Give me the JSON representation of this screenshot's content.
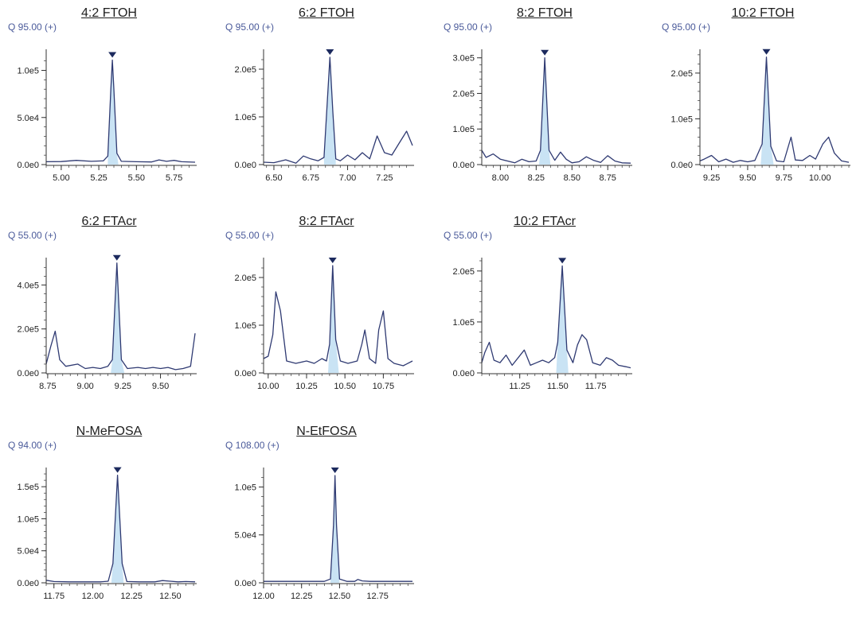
{
  "colors": {
    "trace": "#2f3a72",
    "fill": "#c9e3f4",
    "marker": "#1c2a5e",
    "axis": "#333333"
  },
  "chart_data": [
    {
      "type": "line",
      "title": "4:2 FTOH",
      "annotation": "Q 95.00 (+)",
      "xlim": [
        4.9,
        5.89
      ],
      "ylim": [
        0,
        119000
      ],
      "xticks": [
        "5.00",
        "5.25",
        "5.50",
        "5.75"
      ],
      "xtick_values": [
        5.0,
        5.25,
        5.5,
        5.75
      ],
      "yticks": [
        "0.0e0",
        "5.0e4",
        "1.0e5"
      ],
      "ytick_values": [
        0,
        50000,
        100000
      ],
      "peak": {
        "x": 5.34,
        "y": 111000,
        "x_start": 5.31,
        "x_end": 5.38
      },
      "series": [
        {
          "x": [
            4.9,
            5.0,
            5.1,
            5.2,
            5.28,
            5.31,
            5.33,
            5.34,
            5.35,
            5.37,
            5.4,
            5.5,
            5.6,
            5.65,
            5.7,
            5.75,
            5.8,
            5.89
          ],
          "y": [
            3000,
            3200,
            4500,
            3500,
            4000,
            9000,
            80000,
            111000,
            80000,
            12000,
            3500,
            3000,
            2800,
            5000,
            3500,
            4500,
            3000,
            2500
          ]
        }
      ]
    },
    {
      "type": "line",
      "title": "6:2 FTOH",
      "annotation": "Q 95.00 (+)",
      "xlim": [
        6.43,
        7.44
      ],
      "ylim": [
        0,
        235000
      ],
      "xticks": [
        "6.50",
        "6.75",
        "7.00",
        "7.25"
      ],
      "xtick_values": [
        6.5,
        6.75,
        7.0,
        7.25
      ],
      "yticks": [
        "0.0e0",
        "1.0e5",
        "2.0e5"
      ],
      "ytick_values": [
        0,
        100000,
        200000
      ],
      "peak": {
        "x": 6.88,
        "y": 225000,
        "x_start": 6.84,
        "x_end": 6.92
      },
      "series": [
        {
          "x": [
            6.43,
            6.5,
            6.58,
            6.65,
            6.7,
            6.75,
            6.8,
            6.84,
            6.86,
            6.88,
            6.9,
            6.92,
            6.95,
            7.0,
            7.05,
            7.1,
            7.15,
            7.2,
            7.25,
            7.3,
            7.35,
            7.4,
            7.44
          ],
          "y": [
            5000,
            4000,
            10000,
            3000,
            18000,
            12000,
            8000,
            15000,
            120000,
            225000,
            110000,
            12000,
            8000,
            20000,
            10000,
            25000,
            12000,
            60000,
            25000,
            20000,
            45000,
            70000,
            40000
          ]
        }
      ]
    },
    {
      "type": "line",
      "title": "8:2 FTOH",
      "annotation": "Q 95.00 (+)",
      "xlim": [
        7.87,
        8.91
      ],
      "ylim": [
        0,
        315000
      ],
      "xticks": [
        "8.00",
        "8.25",
        "8.50",
        "8.75"
      ],
      "xtick_values": [
        8.0,
        8.25,
        8.5,
        8.75
      ],
      "yticks": [
        "0.0e0",
        "1.0e5",
        "2.0e5",
        "3.0e5"
      ],
      "ytick_values": [
        0,
        100000,
        200000,
        300000
      ],
      "peak": {
        "x": 8.31,
        "y": 300000,
        "x_start": 8.27,
        "x_end": 8.35
      },
      "series": [
        {
          "x": [
            7.87,
            7.9,
            7.95,
            8.0,
            8.05,
            8.1,
            8.15,
            8.2,
            8.25,
            8.28,
            8.31,
            8.34,
            8.38,
            8.42,
            8.46,
            8.5,
            8.55,
            8.6,
            8.65,
            8.7,
            8.75,
            8.8,
            8.85,
            8.91
          ],
          "y": [
            40000,
            20000,
            30000,
            15000,
            10000,
            5000,
            15000,
            8000,
            10000,
            40000,
            300000,
            40000,
            12000,
            35000,
            15000,
            5000,
            8000,
            22000,
            12000,
            6000,
            25000,
            10000,
            5000,
            4000
          ]
        }
      ]
    },
    {
      "type": "line",
      "title": "10:2 FTOH",
      "annotation": "Q 95.00 (+)",
      "xlim": [
        9.17,
        10.2
      ],
      "ylim": [
        0,
        245000
      ],
      "xticks": [
        "9.25",
        "9.50",
        "9.75",
        "10.00"
      ],
      "xtick_values": [
        9.25,
        9.5,
        9.75,
        10.0
      ],
      "yticks": [
        "0.0e0",
        "1.0e5",
        "2.0e5"
      ],
      "ytick_values": [
        0,
        100000,
        200000
      ],
      "peak": {
        "x": 9.63,
        "y": 235000,
        "x_start": 9.59,
        "x_end": 9.68
      },
      "series": [
        {
          "x": [
            9.17,
            9.2,
            9.25,
            9.3,
            9.35,
            9.4,
            9.45,
            9.5,
            9.55,
            9.6,
            9.63,
            9.66,
            9.7,
            9.75,
            9.8,
            9.83,
            9.88,
            9.93,
            9.97,
            10.02,
            10.06,
            10.1,
            10.15,
            10.2
          ],
          "y": [
            8000,
            12000,
            20000,
            6000,
            12000,
            5000,
            9000,
            6000,
            9000,
            45000,
            235000,
            40000,
            8000,
            6000,
            60000,
            10000,
            9000,
            20000,
            12000,
            45000,
            60000,
            25000,
            8000,
            5000
          ]
        }
      ]
    },
    {
      "type": "line",
      "title": "6:2 FTAcr",
      "annotation": "Q 55.00 (+)",
      "xlim": [
        8.74,
        9.73
      ],
      "ylim": [
        0,
        510000
      ],
      "xticks": [
        "8.75",
        "9.00",
        "9.25",
        "9.50"
      ],
      "xtick_values": [
        8.75,
        9.0,
        9.25,
        9.5
      ],
      "yticks": [
        "0.0e0",
        "2.0e5",
        "4.0e5"
      ],
      "ytick_values": [
        0,
        200000,
        400000
      ],
      "peak": {
        "x": 9.21,
        "y": 500000,
        "x_start": 9.17,
        "x_end": 9.26
      },
      "series": [
        {
          "x": [
            8.74,
            8.77,
            8.8,
            8.83,
            8.87,
            8.95,
            9.0,
            9.05,
            9.1,
            9.15,
            9.18,
            9.21,
            9.24,
            9.28,
            9.35,
            9.4,
            9.45,
            9.5,
            9.55,
            9.6,
            9.65,
            9.7,
            9.73
          ],
          "y": [
            40000,
            120000,
            190000,
            60000,
            30000,
            40000,
            20000,
            25000,
            20000,
            30000,
            60000,
            500000,
            60000,
            20000,
            25000,
            20000,
            25000,
            20000,
            25000,
            15000,
            20000,
            30000,
            180000
          ]
        }
      ]
    },
    {
      "type": "line",
      "title": "8:2 FTAcr",
      "annotation": "Q 55.00 (+)",
      "xlim": [
        9.97,
        10.94
      ],
      "ylim": [
        0,
        235000
      ],
      "xticks": [
        "10.00",
        "10.25",
        "10.50",
        "10.75"
      ],
      "xtick_values": [
        10.0,
        10.25,
        10.5,
        10.75
      ],
      "yticks": [
        "0.0e0",
        "1.0e5",
        "2.0e5"
      ],
      "ytick_values": [
        0,
        100000,
        200000
      ],
      "peak": {
        "x": 10.42,
        "y": 225000,
        "x_start": 10.39,
        "x_end": 10.46
      },
      "series": [
        {
          "x": [
            9.97,
            10.0,
            10.03,
            10.05,
            10.08,
            10.12,
            10.18,
            10.25,
            10.3,
            10.35,
            10.38,
            10.4,
            10.42,
            10.44,
            10.47,
            10.52,
            10.58,
            10.61,
            10.63,
            10.66,
            10.7,
            10.72,
            10.75,
            10.78,
            10.82,
            10.88,
            10.94
          ],
          "y": [
            30000,
            35000,
            80000,
            170000,
            130000,
            25000,
            20000,
            25000,
            20000,
            30000,
            25000,
            60000,
            225000,
            70000,
            25000,
            20000,
            25000,
            60000,
            90000,
            30000,
            20000,
            90000,
            130000,
            30000,
            20000,
            15000,
            25000
          ]
        }
      ]
    },
    {
      "type": "line",
      "title": "10:2 FTAcr",
      "annotation": "Q 55.00 (+)",
      "xlim": [
        11.0,
        11.98
      ],
      "ylim": [
        0,
        220000
      ],
      "xticks": [
        "11.25",
        "11.50",
        "11.75"
      ],
      "xtick_values": [
        11.25,
        11.5,
        11.75
      ],
      "yticks": [
        "0.0e0",
        "1.0e5",
        "2.0e5"
      ],
      "ytick_values": [
        0,
        100000,
        200000
      ],
      "peak": {
        "x": 11.53,
        "y": 210000,
        "x_start": 11.49,
        "x_end": 11.57
      },
      "series": [
        {
          "x": [
            11.0,
            11.02,
            11.05,
            11.08,
            11.12,
            11.16,
            11.2,
            11.24,
            11.28,
            11.32,
            11.36,
            11.4,
            11.44,
            11.48,
            11.5,
            11.53,
            11.56,
            11.6,
            11.63,
            11.66,
            11.69,
            11.73,
            11.78,
            11.82,
            11.86,
            11.9,
            11.95,
            11.98
          ],
          "y": [
            20000,
            40000,
            60000,
            25000,
            20000,
            35000,
            15000,
            30000,
            45000,
            15000,
            20000,
            25000,
            20000,
            30000,
            60000,
            210000,
            45000,
            20000,
            55000,
            75000,
            65000,
            20000,
            15000,
            30000,
            25000,
            15000,
            12000,
            10000
          ]
        }
      ]
    },
    {
      "type": "line",
      "title": "N-MeFOSA",
      "annotation": "Q 94.00 (+)",
      "xlim": [
        11.7,
        12.66
      ],
      "ylim": [
        0,
        175000
      ],
      "xticks": [
        "11.75",
        "12.00",
        "12.25",
        "12.50"
      ],
      "xtick_values": [
        11.75,
        12.0,
        12.25,
        12.5
      ],
      "yticks": [
        "0.0e0",
        "5.0e4",
        "1.0e5",
        "1.5e5"
      ],
      "ytick_values": [
        0,
        50000,
        100000,
        150000
      ],
      "peak": {
        "x": 12.16,
        "y": 168000,
        "x_start": 12.12,
        "x_end": 12.2
      },
      "series": [
        {
          "x": [
            11.7,
            11.75,
            11.85,
            11.95,
            12.05,
            12.1,
            12.13,
            12.16,
            12.19,
            12.22,
            12.3,
            12.4,
            12.45,
            12.5,
            12.55,
            12.6,
            12.66
          ],
          "y": [
            4000,
            2000,
            1500,
            1500,
            1500,
            2500,
            30000,
            168000,
            30000,
            2000,
            1500,
            1500,
            3500,
            2500,
            1500,
            2000,
            1500
          ]
        }
      ]
    },
    {
      "type": "line",
      "title": "N-EtFOSA",
      "annotation": "Q 108.00 (+)",
      "xlim": [
        12.0,
        12.98
      ],
      "ylim": [
        0,
        117000
      ],
      "xticks": [
        "12.00",
        "12.25",
        "12.50",
        "12.75"
      ],
      "xtick_values": [
        12.0,
        12.25,
        12.5,
        12.75
      ],
      "yticks": [
        "0.0e0",
        "5.0e4",
        "1.0e5"
      ],
      "ytick_values": [
        0,
        50000,
        100000
      ],
      "peak": {
        "x": 12.47,
        "y": 112000,
        "x_start": 12.44,
        "x_end": 12.5
      },
      "series": [
        {
          "x": [
            12.0,
            12.1,
            12.2,
            12.3,
            12.4,
            12.44,
            12.46,
            12.47,
            12.48,
            12.5,
            12.55,
            12.6,
            12.62,
            12.65,
            12.7,
            12.8,
            12.9,
            12.98
          ],
          "y": [
            1500,
            1500,
            1500,
            1500,
            1500,
            4000,
            60000,
            112000,
            60000,
            4000,
            1500,
            1500,
            3500,
            2000,
            1500,
            1500,
            1500,
            1500
          ]
        }
      ]
    }
  ]
}
